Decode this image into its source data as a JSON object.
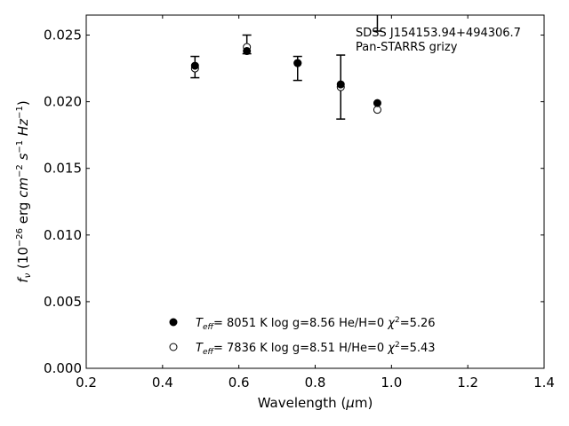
{
  "chart_data": {
    "type": "scatter",
    "title": "",
    "xlabel": "Wavelength (μm)",
    "ylabel": "fν (10−26 erg cm−2 s−1 Hz−1)",
    "xlim": [
      0.2,
      1.4
    ],
    "ylim": [
      0.0,
      0.0265
    ],
    "xticks": [
      0.2,
      0.4,
      0.6,
      0.8,
      1.0,
      1.2,
      1.4
    ],
    "xtick_labels": [
      "0.2",
      "0.4",
      "0.6",
      "0.8",
      "1.0",
      "1.2",
      "1.4"
    ],
    "yticks": [
      0.0,
      0.005,
      0.01,
      0.015,
      0.02,
      0.025
    ],
    "ytick_labels": [
      "0.000",
      "0.005",
      "0.010",
      "0.015",
      "0.020",
      "0.025"
    ],
    "grid": false,
    "annotation": {
      "line1": "SDSS J154153.94+494306.7",
      "line2": "Pan-STARRS grizy"
    },
    "observed": {
      "x": [
        0.485,
        0.621,
        0.754,
        0.867,
        0.963
      ],
      "y": [
        0.0226,
        0.0243,
        0.0225,
        0.0211,
        0.0272
      ],
      "yerr": [
        0.0008,
        0.0007,
        0.0009,
        0.0024,
        0.0019
      ]
    },
    "series": [
      {
        "marker": "filled-circle",
        "x": [
          0.485,
          0.621,
          0.754,
          0.867,
          0.963
        ],
        "y": [
          0.0227,
          0.0238,
          0.0229,
          0.0213,
          0.0199
        ]
      },
      {
        "marker": "open-circle",
        "x": [
          0.485,
          0.621,
          0.754,
          0.867,
          0.963
        ],
        "y": [
          0.0225,
          0.0241,
          0.0229,
          0.0211,
          0.0194
        ]
      }
    ],
    "legend": {
      "placement": "lower-center",
      "entries": [
        {
          "teff": "8051",
          "logg": "8.56",
          "comp": "He/H=0",
          "chi2": "5.26"
        },
        {
          "teff": "7836",
          "logg": "8.51",
          "comp": "H/He=0",
          "chi2": "5.43"
        }
      ]
    }
  }
}
